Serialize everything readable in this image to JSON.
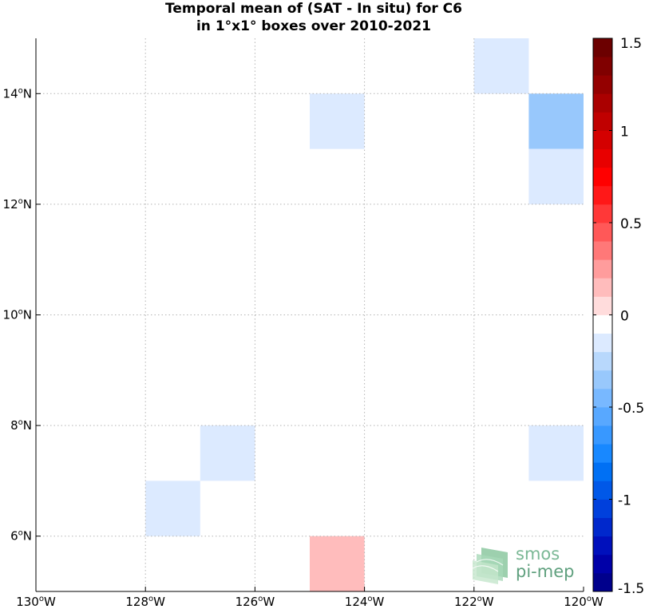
{
  "chart_data": {
    "type": "heatmap",
    "title_lines": [
      "Temporal mean of (SAT - In situ) for C6",
      "in 1°x1° boxes over 2010-2021"
    ],
    "x_axis": {
      "range": [
        -130,
        -120
      ],
      "ticks": [
        -130,
        -128,
        -126,
        -124,
        -122,
        -120
      ],
      "tick_labels": [
        "130",
        "128",
        "126",
        "124",
        "122",
        "120"
      ],
      "hemisphere": "W"
    },
    "y_axis": {
      "range": [
        5,
        15
      ],
      "ticks": [
        6,
        8,
        10,
        12,
        14
      ],
      "tick_labels": [
        "6",
        "8",
        "10",
        "12",
        "14"
      ],
      "hemisphere": "N"
    },
    "grid": true,
    "cells": [
      {
        "lon": [
          -122,
          -121
        ],
        "lat": [
          14,
          15
        ],
        "value": -0.1
      },
      {
        "lon": [
          -121,
          -120
        ],
        "lat": [
          13,
          14
        ],
        "value": -0.3
      },
      {
        "lon": [
          -121,
          -120
        ],
        "lat": [
          12,
          13
        ],
        "value": -0.1
      },
      {
        "lon": [
          -125,
          -124
        ],
        "lat": [
          13,
          14
        ],
        "value": -0.1
      },
      {
        "lon": [
          -127,
          -126
        ],
        "lat": [
          7,
          8
        ],
        "value": -0.1
      },
      {
        "lon": [
          -128,
          -127
        ],
        "lat": [
          6,
          7
        ],
        "value": -0.1
      },
      {
        "lon": [
          -121,
          -120
        ],
        "lat": [
          7,
          8
        ],
        "value": -0.1
      },
      {
        "lon": [
          -125,
          -124
        ],
        "lat": [
          5,
          6
        ],
        "value": 0.1
      }
    ],
    "colorbar": {
      "range": [
        -1.5,
        1.5
      ],
      "ticks": [
        1.5,
        1,
        0.5,
        0,
        -0.5,
        -1,
        -1.5
      ],
      "tick_labels": [
        "1.5",
        "1",
        "0.5",
        "0",
        "-0.5",
        "-1",
        "-1.5"
      ],
      "colors": [
        "#00008c",
        "#0000a8",
        "#0010bc",
        "#0028cc",
        "#0040dc",
        "#0058e8",
        "#0070f4",
        "#1888ff",
        "#3898ff",
        "#58a8ff",
        "#78b8ff",
        "#98c8fc",
        "#b8d8fc",
        "#dceaff",
        "#ffffff",
        "#ffdcdc",
        "#ffbcbc",
        "#ff9c9c",
        "#ff7878",
        "#ff5858",
        "#ff3838",
        "#ff1818",
        "#ff0000",
        "#e80000",
        "#d40000",
        "#c00000",
        "#aa0000",
        "#940000",
        "#800000",
        "#6c0000"
      ]
    }
  },
  "logo": {
    "line1": "smos",
    "line2": "pi-mep"
  }
}
